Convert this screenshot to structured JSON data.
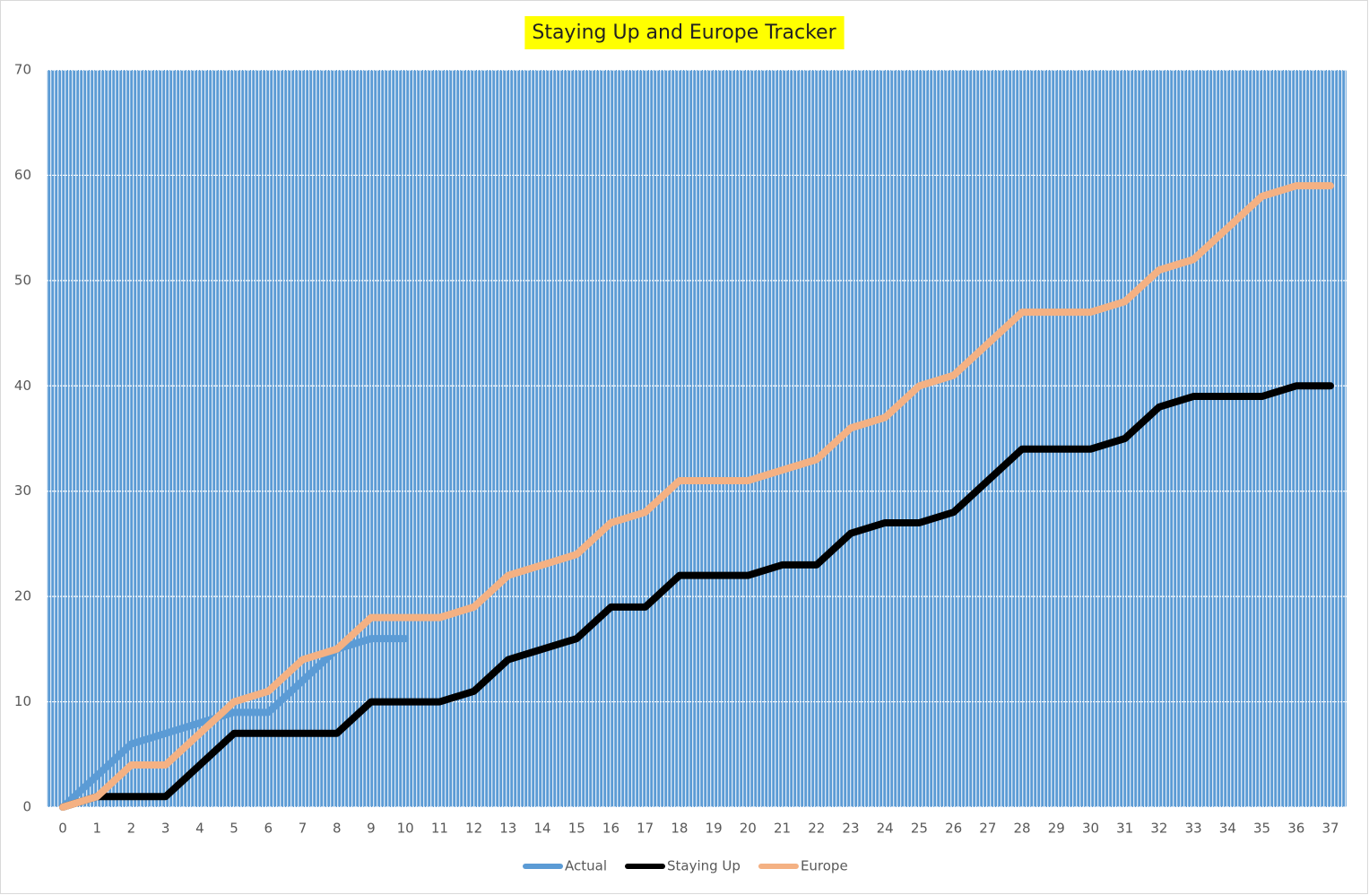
{
  "chart_data": {
    "type": "line",
    "title": "Staying Up and Europe Tracker",
    "categories": [
      "0",
      "1",
      "2",
      "3",
      "4",
      "5",
      "6",
      "7",
      "8",
      "9",
      "10",
      "11",
      "12",
      "13",
      "14",
      "15",
      "16",
      "17",
      "18",
      "19",
      "20",
      "21",
      "22",
      "23",
      "24",
      "25",
      "26",
      "27",
      "28",
      "29",
      "30",
      "31",
      "32",
      "33",
      "34",
      "35",
      "36",
      "37"
    ],
    "series": [
      {
        "name": "Actual",
        "color": "#5b9bd5",
        "values": [
          0,
          3,
          6,
          7,
          8,
          9,
          9,
          12,
          15,
          16,
          16,
          null,
          null,
          null,
          null,
          null,
          null,
          null,
          null,
          null,
          null,
          null,
          null,
          null,
          null,
          null,
          null,
          null,
          null,
          null,
          null,
          null,
          null,
          null,
          null,
          null,
          null,
          null
        ]
      },
      {
        "name": "Staying Up",
        "color": "#000000",
        "values": [
          0,
          1,
          1,
          1,
          4,
          7,
          7,
          7,
          7,
          10,
          10,
          10,
          11,
          14,
          15,
          16,
          19,
          19,
          22,
          22,
          22,
          23,
          23,
          26,
          27,
          27,
          28,
          31,
          34,
          34,
          34,
          35,
          38,
          39,
          39,
          39,
          40,
          40
        ]
      },
      {
        "name": "Europe",
        "color": "#f4b183",
        "values": [
          0,
          1,
          4,
          4,
          7,
          10,
          11,
          14,
          15,
          18,
          18,
          18,
          19,
          22,
          23,
          24,
          27,
          28,
          31,
          31,
          31,
          32,
          33,
          36,
          37,
          40,
          41,
          44,
          47,
          47,
          47,
          48,
          51,
          52,
          55,
          58,
          59,
          59
        ]
      }
    ],
    "ylim": [
      0,
      70
    ],
    "yticks": [
      0,
      10,
      20,
      30,
      40,
      50,
      60,
      70
    ],
    "grid": true,
    "legend": "bottom",
    "title_highlight": "#ffff00"
  }
}
